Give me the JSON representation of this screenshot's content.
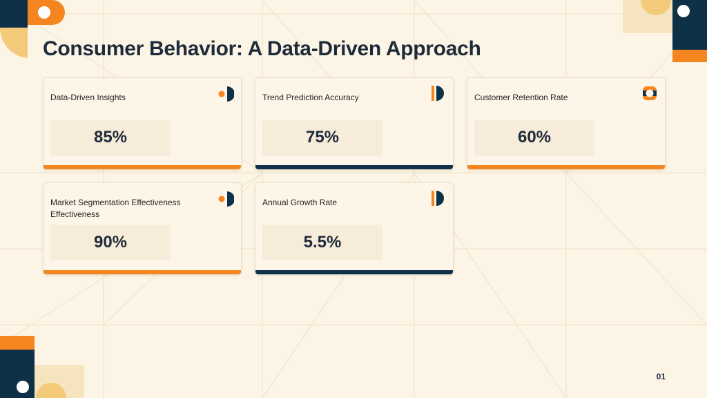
{
  "slide": {
    "title": "Consumer Behavior: A Data-Driven Approach",
    "page_number": "01"
  },
  "colors": {
    "background": "#fcf5e6",
    "navy": "#0e3147",
    "orange": "#f5861f",
    "sand": "#f3c97a",
    "text": "#1d2b3a"
  },
  "cards": [
    {
      "label": "Data-Driven Insights",
      "value": "85%",
      "accent": "orange",
      "icon": "dot-half-circle-icon"
    },
    {
      "label": "Trend Prediction Accuracy",
      "value": "75%",
      "accent": "navy",
      "icon": "bar-half-circle-icon"
    },
    {
      "label": "Customer Retention Rate",
      "value": "60%",
      "accent": "orange",
      "icon": "ring-icon"
    },
    {
      "label": "Market Segmentation Effectiveness Effectiveness",
      "value": "90%",
      "accent": "orange",
      "icon": "dot-half-circle-icon"
    },
    {
      "label": "Annual Growth Rate",
      "value": "5.5%",
      "accent": "navy",
      "icon": "bar-half-circle-icon"
    }
  ]
}
